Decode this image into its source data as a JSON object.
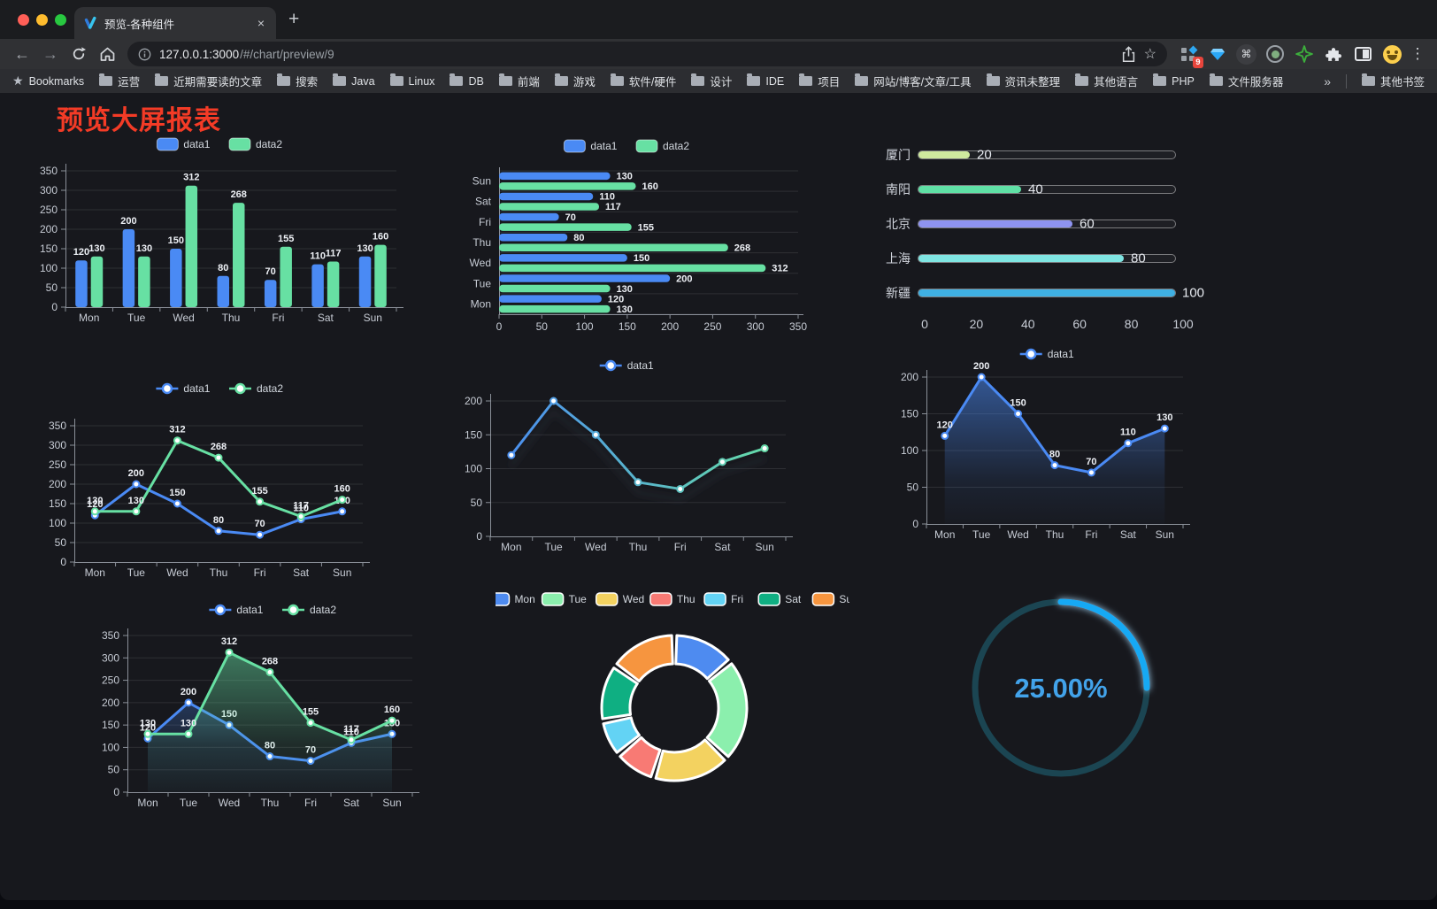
{
  "browser": {
    "tab": {
      "title": "预览-各种组件"
    },
    "url": {
      "host": "127.0.0.1:3000",
      "path": "/#/chart/preview/9"
    },
    "toolbar_icons": [
      "back-icon",
      "forward-icon",
      "reload-icon",
      "home-icon",
      "info-icon",
      "share-icon",
      "star-icon",
      "kebab-menu-icon"
    ],
    "extensions_badge": "9",
    "extension_icons": [
      "grid-extension-icon",
      "gem-extension-icon",
      "command-extension-icon",
      "record-extension-icon",
      "green-star-extension-icon",
      "puzzle-extensions-icon",
      "split-view-icon",
      "emoji-extension-icon"
    ],
    "bookmarks": {
      "label": "Bookmarks",
      "items": [
        "运营",
        "近期需要读的文章",
        "搜索",
        "Java",
        "Linux",
        "DB",
        "前端",
        "游戏",
        "软件/硬件",
        "设计",
        "IDE",
        "项目",
        "网站/博客/文章/工具",
        "资讯未整理",
        "其他语言",
        "PHP",
        "文件服务器"
      ],
      "overflow": "»",
      "other": "其他书签"
    }
  },
  "page": {
    "title": "预览大屏报表",
    "title_color": "#f43b26",
    "background": "#17181d"
  },
  "chart_data": [
    {
      "id": "bar-grouped-vertical",
      "type": "bar",
      "orientation": "vertical",
      "categories": [
        "Mon",
        "Tue",
        "Wed",
        "Thu",
        "Fri",
        "Sat",
        "Sun"
      ],
      "series": [
        {
          "name": "data1",
          "color": "#4A8AF4",
          "values": [
            120,
            200,
            150,
            80,
            70,
            110,
            130
          ]
        },
        {
          "name": "data2",
          "color": "#67E0A3",
          "values": [
            130,
            130,
            312,
            268,
            155,
            117,
            160
          ]
        }
      ],
      "ylim": [
        0,
        350
      ],
      "yticks": [
        0,
        50,
        100,
        150,
        200,
        250,
        300,
        350
      ],
      "value_labels": true,
      "legend_position": "top",
      "grid": true
    },
    {
      "id": "bar-grouped-horizontal",
      "type": "bar",
      "orientation": "horizontal",
      "categories": [
        "Mon",
        "Tue",
        "Wed",
        "Thu",
        "Fri",
        "Sat",
        "Sun"
      ],
      "category_display": "reversed-top-to-bottom",
      "series": [
        {
          "name": "data1",
          "color": "#4A8AF4",
          "values": [
            120,
            200,
            150,
            80,
            70,
            110,
            130
          ]
        },
        {
          "name": "data2",
          "color": "#67E0A3",
          "values": [
            130,
            130,
            312,
            268,
            155,
            117,
            160
          ]
        }
      ],
      "xlim": [
        0,
        350
      ],
      "xticks": [
        0,
        50,
        100,
        150,
        200,
        250,
        300,
        350
      ],
      "value_labels": true,
      "legend_position": "top",
      "grid": true
    },
    {
      "id": "progress-bars",
      "type": "bar",
      "orientation": "progress",
      "categories": [
        "厦门",
        "南阳",
        "北京",
        "上海",
        "新疆"
      ],
      "values": [
        20,
        40,
        60,
        80,
        100
      ],
      "bar_colors": [
        "#CFE99E",
        "#5FE0A5",
        "#8E93F0",
        "#7FE5E2",
        "#3FB0E3"
      ],
      "xlim": [
        0,
        100
      ],
      "xticks": [
        0,
        20,
        40,
        60,
        80,
        100
      ],
      "value_labels": true
    },
    {
      "id": "line-two-series",
      "type": "line",
      "categories": [
        "Mon",
        "Tue",
        "Wed",
        "Thu",
        "Fri",
        "Sat",
        "Sun"
      ],
      "series": [
        {
          "name": "data1",
          "color": "#4A8AF4",
          "values": [
            120,
            200,
            150,
            80,
            70,
            110,
            130
          ]
        },
        {
          "name": "data2",
          "color": "#67E0A3",
          "values": [
            130,
            130,
            312,
            268,
            155,
            117,
            160
          ]
        }
      ],
      "ylim": [
        0,
        350
      ],
      "yticks": [
        0,
        50,
        100,
        150,
        200,
        250,
        300,
        350
      ],
      "markers": true,
      "value_labels": true,
      "legend_position": "top",
      "grid": true
    },
    {
      "id": "line-gradient",
      "type": "line",
      "categories": [
        "Mon",
        "Tue",
        "Wed",
        "Thu",
        "Fri",
        "Sat",
        "Sun"
      ],
      "series": [
        {
          "name": "data1",
          "color": "#4A8AF4",
          "color_gradient": [
            "#4A8AF4",
            "#67E0A3"
          ],
          "values": [
            120,
            200,
            150,
            80,
            70,
            110,
            130
          ]
        }
      ],
      "ylim": [
        0,
        200
      ],
      "yticks": [
        0,
        50,
        100,
        150,
        200
      ],
      "markers": true,
      "value_labels": false,
      "gradient": true,
      "shadow": true,
      "legend_position": "top",
      "grid": true
    },
    {
      "id": "area-single",
      "type": "area",
      "categories": [
        "Mon",
        "Tue",
        "Wed",
        "Thu",
        "Fri",
        "Sat",
        "Sun"
      ],
      "series": [
        {
          "name": "data1",
          "color": "#4A8AF4",
          "values": [
            120,
            200,
            150,
            80,
            70,
            110,
            130
          ]
        }
      ],
      "ylim": [
        0,
        200
      ],
      "yticks": [
        0,
        50,
        100,
        150,
        200
      ],
      "markers": true,
      "value_labels": true,
      "legend_position": "top",
      "grid": true
    },
    {
      "id": "area-two-series",
      "type": "area",
      "categories": [
        "Mon",
        "Tue",
        "Wed",
        "Thu",
        "Fri",
        "Sat",
        "Sun"
      ],
      "series": [
        {
          "name": "data1",
          "color": "#4A8AF4",
          "values": [
            120,
            200,
            150,
            80,
            70,
            110,
            130
          ]
        },
        {
          "name": "data2",
          "color": "#67E0A3",
          "values": [
            130,
            130,
            312,
            268,
            155,
            117,
            160
          ]
        }
      ],
      "ylim": [
        0,
        350
      ],
      "yticks": [
        0,
        50,
        100,
        150,
        200,
        250,
        300,
        350
      ],
      "markers": true,
      "value_labels": true,
      "legend_position": "top",
      "grid": true
    },
    {
      "id": "pie-donut",
      "type": "pie",
      "categories": [
        "Mon",
        "Tue",
        "Wed",
        "Thu",
        "Fri",
        "Sat",
        "Sun"
      ],
      "values": [
        120,
        200,
        150,
        80,
        70,
        110,
        130
      ],
      "colors": [
        "#4E8BF0",
        "#8BEFAD",
        "#F3D260",
        "#F87A74",
        "#63D3F4",
        "#0FAF82",
        "#F6953F"
      ],
      "inner_radius_ratio": 0.61,
      "border_color": "#ffffff",
      "legend_position": "top"
    },
    {
      "id": "gauge",
      "type": "gauge",
      "value": 25,
      "max": 100,
      "label": "25.00%",
      "progress_color": "#18A9F4",
      "track_color": "#1B4552",
      "label_color": "#42A3EA"
    }
  ]
}
